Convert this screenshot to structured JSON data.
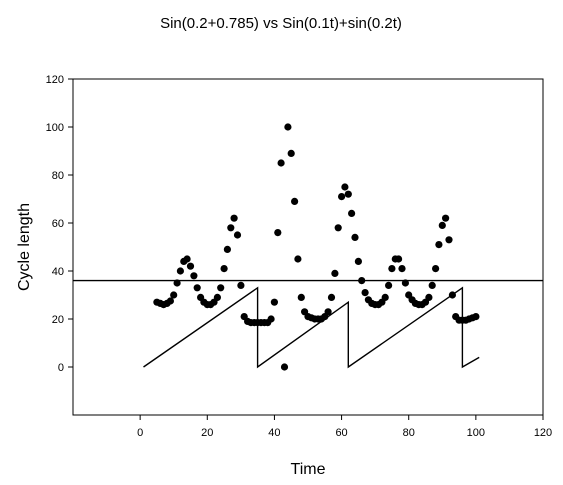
{
  "chart_data": {
    "type": "scatter",
    "title": "Sin(0.2+0.785) vs Sin(0.1t)+sin(0.2t)",
    "xlabel": "Time",
    "ylabel": "Cycle length",
    "xlim": [
      -20,
      120
    ],
    "ylim": [
      -20,
      120
    ],
    "xticks": [
      0,
      20,
      40,
      60,
      80,
      100,
      120
    ],
    "yticks": [
      0,
      20,
      40,
      60,
      80,
      100,
      120
    ],
    "grid": false,
    "series": [
      {
        "style": "points",
        "points": [
          [
            5,
            27
          ],
          [
            6,
            26.5
          ],
          [
            7,
            26
          ],
          [
            8,
            26.5
          ],
          [
            9,
            27.5
          ],
          [
            10,
            30
          ],
          [
            11,
            35
          ],
          [
            12,
            40
          ],
          [
            13,
            44
          ],
          [
            14,
            45
          ],
          [
            15,
            42
          ],
          [
            16,
            38
          ],
          [
            17,
            33
          ],
          [
            18,
            29
          ],
          [
            19,
            27
          ],
          [
            20,
            26
          ],
          [
            21,
            26
          ],
          [
            22,
            27
          ],
          [
            23,
            29
          ],
          [
            24,
            33
          ],
          [
            25,
            41
          ],
          [
            26,
            49
          ],
          [
            27,
            58
          ],
          [
            28,
            62
          ],
          [
            29,
            55
          ],
          [
            30,
            34
          ],
          [
            31,
            21
          ],
          [
            32,
            19
          ],
          [
            33,
            18.5
          ],
          [
            34,
            18.5
          ],
          [
            35,
            18.5
          ],
          [
            36,
            18.5
          ],
          [
            37,
            18.5
          ],
          [
            38,
            18.5
          ],
          [
            39,
            20
          ],
          [
            40,
            27
          ],
          [
            41,
            56
          ],
          [
            42,
            85
          ],
          [
            43,
            0
          ],
          [
            44,
            100
          ],
          [
            45,
            89
          ],
          [
            46,
            69
          ],
          [
            47,
            45
          ],
          [
            48,
            29
          ],
          [
            49,
            23
          ],
          [
            50,
            21
          ],
          [
            51,
            20.5
          ],
          [
            52,
            20
          ],
          [
            53,
            20
          ],
          [
            54,
            20
          ],
          [
            55,
            21
          ],
          [
            56,
            23
          ],
          [
            57,
            29
          ],
          [
            58,
            39
          ],
          [
            59,
            58
          ],
          [
            60,
            71
          ],
          [
            61,
            75
          ],
          [
            62,
            72
          ],
          [
            63,
            64
          ],
          [
            64,
            54
          ],
          [
            65,
            44
          ],
          [
            66,
            36
          ],
          [
            67,
            31
          ],
          [
            68,
            28
          ],
          [
            69,
            26.5
          ],
          [
            70,
            26
          ],
          [
            71,
            26
          ],
          [
            72,
            27
          ],
          [
            73,
            29
          ],
          [
            74,
            34
          ],
          [
            75,
            41
          ],
          [
            76,
            45
          ],
          [
            77,
            45
          ],
          [
            78,
            41
          ],
          [
            79,
            35
          ],
          [
            80,
            30
          ],
          [
            81,
            28
          ],
          [
            82,
            26.5
          ],
          [
            83,
            26
          ],
          [
            84,
            26
          ],
          [
            85,
            27
          ],
          [
            86,
            29
          ],
          [
            87,
            34
          ],
          [
            88,
            41
          ],
          [
            89,
            51
          ],
          [
            90,
            59
          ],
          [
            91,
            62
          ],
          [
            92,
            53
          ],
          [
            93,
            30
          ],
          [
            94,
            21
          ],
          [
            95,
            19.5
          ],
          [
            96,
            19.5
          ],
          [
            97,
            19.5
          ],
          [
            98,
            20
          ],
          [
            99,
            20.5
          ],
          [
            100,
            21
          ]
        ]
      },
      {
        "style": "line",
        "points": [
          [
            1,
            0
          ],
          [
            35,
            33
          ],
          [
            35,
            0
          ],
          [
            62,
            27
          ],
          [
            62,
            0
          ],
          [
            96,
            33
          ],
          [
            96,
            0
          ],
          [
            101,
            4
          ]
        ]
      },
      {
        "style": "line",
        "points": [
          [
            -20,
            36
          ],
          [
            120,
            36
          ]
        ]
      }
    ]
  }
}
